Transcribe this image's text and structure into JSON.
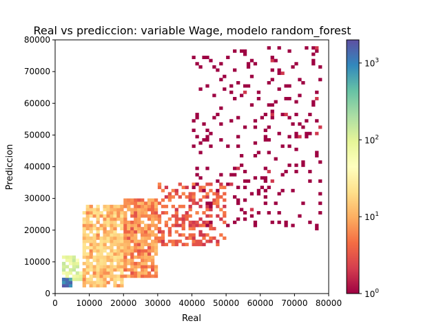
{
  "chart_data": {
    "type": "heatmap",
    "title": "Real vs prediccion: variable Wage, modelo random_forest",
    "xlabel": "Real",
    "ylabel": "Prediccion",
    "xlim": [
      0,
      80000
    ],
    "ylim": [
      0,
      80000
    ],
    "x_ticks": [
      "0",
      "10000",
      "20000",
      "30000",
      "40000",
      "50000",
      "60000",
      "70000",
      "80000"
    ],
    "y_ticks": [
      "0",
      "10000",
      "20000",
      "30000",
      "40000",
      "50000",
      "60000",
      "70000",
      "80000"
    ],
    "grid": false,
    "colorscale": "Spectral",
    "colorbar": {
      "scale": "log",
      "range": [
        1,
        2000
      ],
      "ticks": [
        1,
        10,
        100,
        1000
      ],
      "tick_labels": [
        "10",
        "10",
        "10",
        "10"
      ],
      "tick_exponents": [
        "0",
        "1",
        "2",
        "3"
      ]
    },
    "density_regions": [
      {
        "x": [
          2000,
          5000
        ],
        "y": [
          2000,
          5000
        ],
        "count": 1200
      },
      {
        "x": [
          2000,
          8000
        ],
        "y": [
          4000,
          12000
        ],
        "count": 100
      },
      {
        "x": [
          8000,
          20000
        ],
        "y": [
          2000,
          28000
        ],
        "count": 15
      },
      {
        "x": [
          20000,
          30000
        ],
        "y": [
          5000,
          30000
        ],
        "count": 8
      },
      {
        "x": [
          30000,
          50000
        ],
        "y": [
          15000,
          35000
        ],
        "count": 4
      },
      {
        "x": [
          40000,
          78000
        ],
        "y": [
          20000,
          78000
        ],
        "count": 1
      }
    ]
  }
}
